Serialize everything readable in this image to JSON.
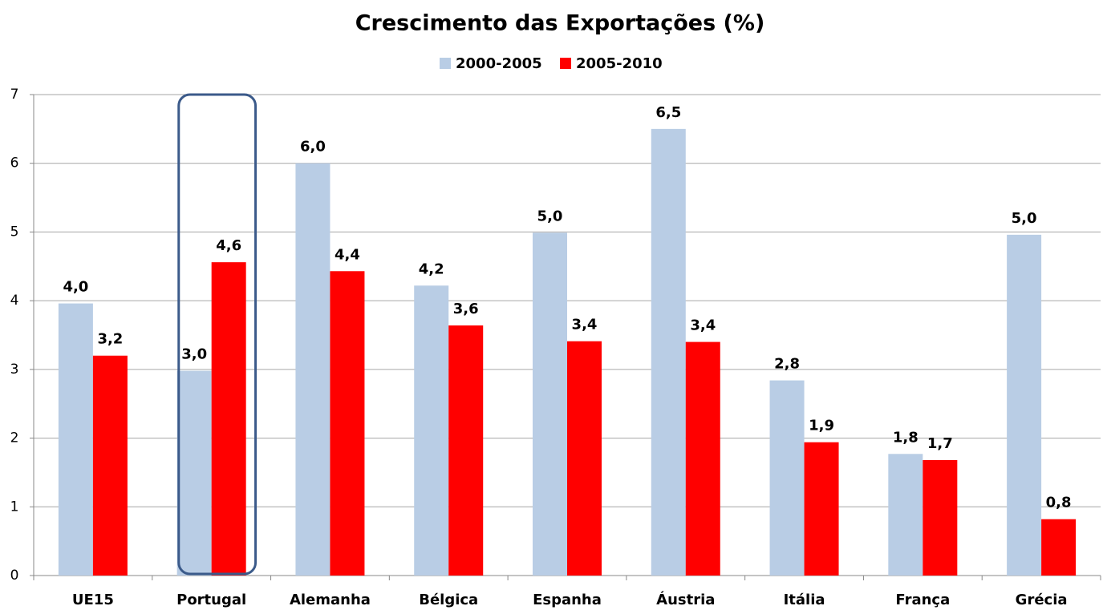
{
  "chart_data": {
    "type": "bar",
    "title": "Crescimento das Exportações (%)",
    "categories": [
      "UE15",
      "Portugal",
      "Alemanha",
      "Bélgica",
      "Espanha",
      "Áustria",
      "Itália",
      "França",
      "Grécia"
    ],
    "series": [
      {
        "name": "2000-2005",
        "color": "#b9cde5",
        "values": [
          3.96,
          2.98,
          6.0,
          4.22,
          4.99,
          6.5,
          2.84,
          1.77,
          4.96
        ],
        "value_labels": [
          "4,0",
          "3,0",
          "6,0",
          "4,2",
          "5,0",
          "6,5",
          "2,8",
          "1,8",
          "5,0"
        ]
      },
      {
        "name": "2005-2010",
        "color": "#ff0000",
        "values": [
          3.2,
          4.56,
          4.43,
          3.64,
          3.41,
          3.4,
          1.94,
          1.68,
          0.82
        ],
        "value_labels": [
          "3,2",
          "4,6",
          "4,4",
          "3,6",
          "3,4",
          "3,4",
          "1,9",
          "1,7",
          "0,8"
        ]
      }
    ],
    "ylim": [
      0,
      7
    ],
    "yticks": [
      0,
      1,
      2,
      3,
      4,
      5,
      6,
      7
    ],
    "grid": true,
    "legend": "top"
  }
}
